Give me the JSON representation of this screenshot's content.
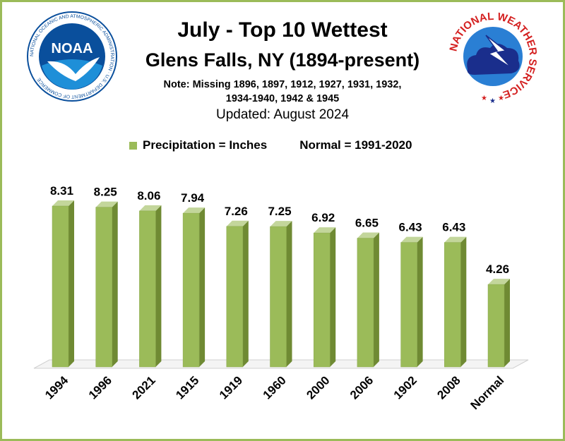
{
  "header": {
    "title": "July - Top 10 Wettest",
    "subtitle": "Glens Falls, NY (1894-present)",
    "note_line1": "Note: Missing 1896, 1897, 1912, 1927, 1931, 1932,",
    "note_line2": "1934-1940, 1942 & 1945",
    "updated": "Updated: August 2024"
  },
  "legend": {
    "series_label": "Precipitation = Inches",
    "normal_label": "Normal = 1991-2020"
  },
  "logos": {
    "noaa_text": "NOAA",
    "noaa_ring_text": "NATIONAL OCEANIC AND ATMOSPHERIC ADMINISTRATION · U.S. DEPARTMENT OF COMMERCE",
    "nws_ring_text": "NATIONAL WEATHER SERVICE"
  },
  "colors": {
    "bar_front": "#9bbb59",
    "bar_side": "#6f8a33",
    "bar_top": "#c3d69b",
    "border": "#9bbb59",
    "noaa_blue": "#0a4f9c",
    "nws_red": "#d42020"
  },
  "chart_data": {
    "type": "bar",
    "categories": [
      "1994",
      "1996",
      "2021",
      "1915",
      "1919",
      "1960",
      "2000",
      "2006",
      "1902",
      "2008",
      "Normal"
    ],
    "values": [
      8.31,
      8.25,
      8.06,
      7.94,
      7.26,
      7.25,
      6.92,
      6.65,
      6.43,
      6.43,
      4.26
    ],
    "labels": [
      "8.31",
      "8.25",
      "8.06",
      "7.94",
      "7.26",
      "7.25",
      "6.92",
      "6.65",
      "6.43",
      "6.43",
      "4.26"
    ],
    "ylim": [
      0,
      9
    ],
    "grid": false,
    "legend": "top",
    "style": "3d"
  }
}
